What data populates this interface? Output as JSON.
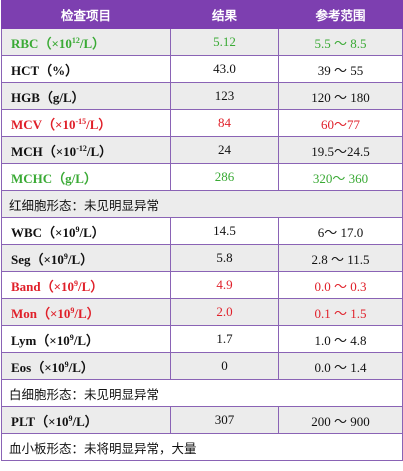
{
  "header": {
    "item": "检查项目",
    "result": "结果",
    "range": "参考范围"
  },
  "rows": [
    {
      "type": "data",
      "shade": true,
      "color": "green",
      "name_pre": "RBC（×10",
      "name_sup": "12",
      "name_post": "/L）",
      "value": "5.12",
      "range": "5.5 ～ 8.5"
    },
    {
      "type": "data",
      "shade": false,
      "color": "",
      "name_pre": "HCT（%）",
      "name_sup": "",
      "name_post": "",
      "value": "43.0",
      "range": "39 ～ 55"
    },
    {
      "type": "data",
      "shade": true,
      "color": "",
      "name_pre": "HGB（g/L）",
      "name_sup": "",
      "name_post": "",
      "value": "123",
      "range": "120 ～ 180"
    },
    {
      "type": "data",
      "shade": false,
      "color": "red",
      "name_pre": "MCV（×10",
      "name_sup": "-15",
      "name_post": "/L）",
      "value": "84",
      "range": "60～77"
    },
    {
      "type": "data",
      "shade": true,
      "color": "",
      "name_pre": "MCH（×10",
      "name_sup": "-12",
      "name_post": "/L）",
      "value": "24",
      "range": "19.5～24.5"
    },
    {
      "type": "data",
      "shade": false,
      "color": "green",
      "name_pre": "MCHC（g/L）",
      "name_sup": "",
      "name_post": "",
      "value": "286",
      "range": "320～ 360"
    },
    {
      "type": "note",
      "shade": true,
      "text": "红细胞形态：未见明显异常"
    },
    {
      "type": "data",
      "shade": false,
      "color": "",
      "name_pre": "WBC（×10",
      "name_sup": "9",
      "name_post": "/L）",
      "value": "14.5",
      "range": "6～ 17.0"
    },
    {
      "type": "data",
      "shade": true,
      "color": "",
      "name_pre": "Seg（×10",
      "name_sup": "9",
      "name_post": "/L）",
      "value": "5.8",
      "range": "2.8 ～ 11.5"
    },
    {
      "type": "data",
      "shade": false,
      "color": "red",
      "name_pre": "Band（×10",
      "name_sup": "9",
      "name_post": "/L）",
      "value": "4.9",
      "range": "0.0 ～ 0.3"
    },
    {
      "type": "data",
      "shade": true,
      "color": "red",
      "name_pre": "Mon（×10",
      "name_sup": "9",
      "name_post": "/L）",
      "value": "2.0",
      "range": "0.1 ～ 1.5"
    },
    {
      "type": "data",
      "shade": false,
      "color": "",
      "name_pre": "Lym（×10",
      "name_sup": "9",
      "name_post": "/L）",
      "value": "1.7",
      "range": "1.0 ～ 4.8"
    },
    {
      "type": "data",
      "shade": true,
      "color": "",
      "name_pre": "Eos（×10",
      "name_sup": "9",
      "name_post": "/L）",
      "value": "0",
      "range": "0.0 ～ 1.4"
    },
    {
      "type": "note",
      "shade": false,
      "text": "白细胞形态：未见明显异常"
    },
    {
      "type": "data",
      "shade": true,
      "color": "",
      "name_pre": "PLT（×10",
      "name_sup": "9",
      "name_post": "/L）",
      "value": "307",
      "range": "200 ～ 900"
    },
    {
      "type": "note",
      "shade": false,
      "text": "血小板形态：未将明显异常，大量"
    }
  ]
}
